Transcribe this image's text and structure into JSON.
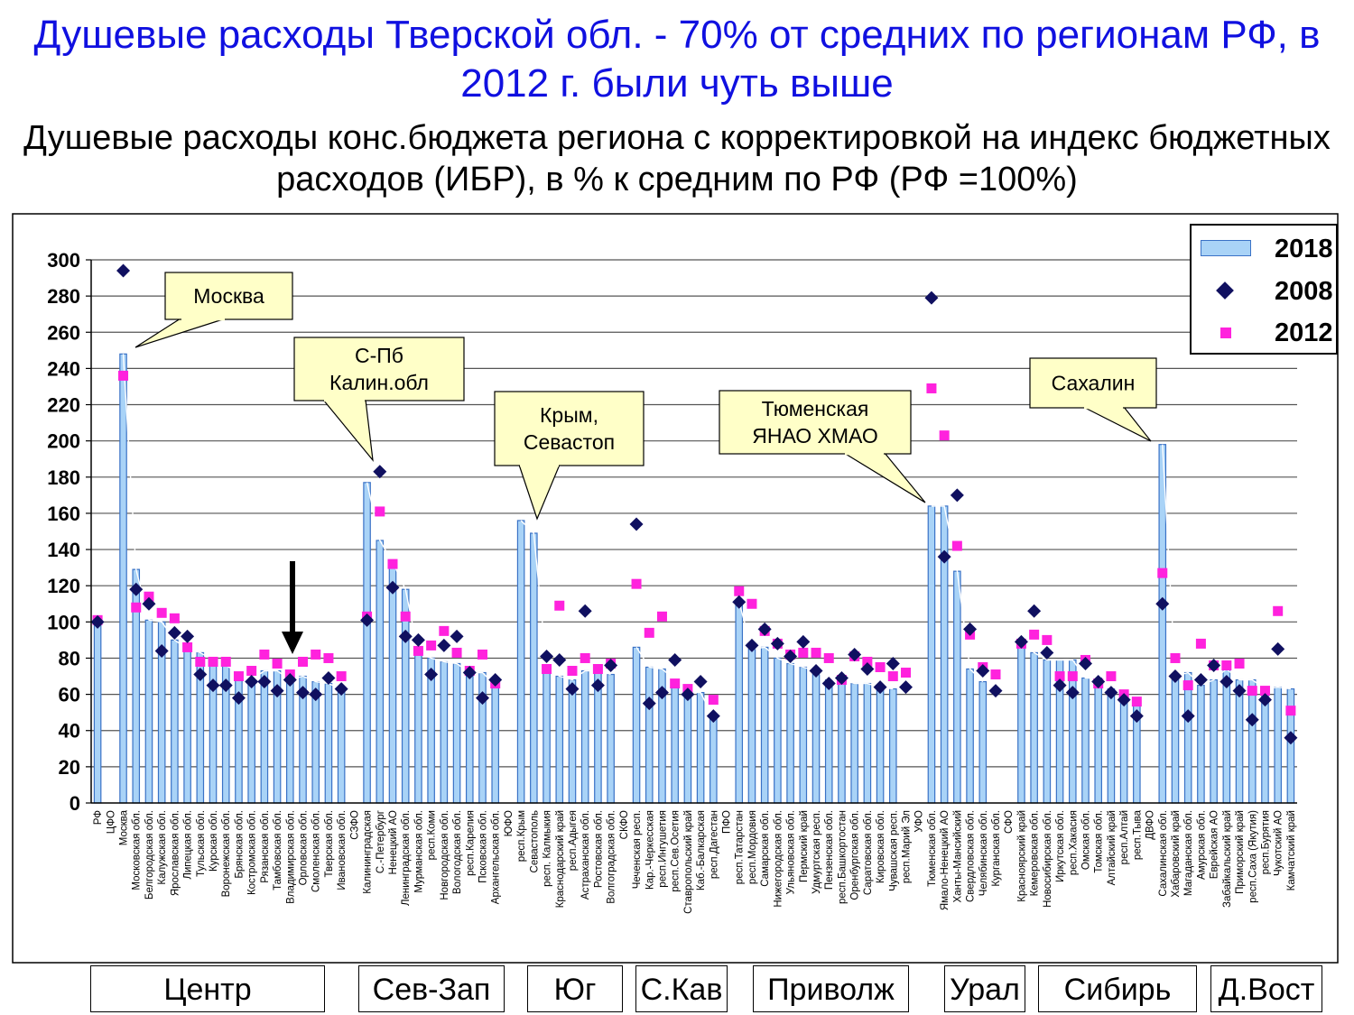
{
  "title": "Душевые расходы Тверской обл. - 70% от средних по регионам РФ, в 2012 г. были чуть выше",
  "subtitle": "Душевые расходы конс.бюджета региона с корректировкой на индекс бюджетных расходов (ИБР), в % к средним по РФ (РФ =100%)",
  "legend": {
    "s2018": "2018",
    "s2008": "2008",
    "s2012": "2012"
  },
  "colors": {
    "bar_fill": "#a9d3f7",
    "bar_stroke": "#3a72c6",
    "diamond": "#101060",
    "square": "#ff22dd",
    "callout": "#ffffc8"
  },
  "callouts": [
    {
      "name": "callout-moscow",
      "lines": [
        "Москва"
      ]
    },
    {
      "name": "callout-spb",
      "lines": [
        "С-Пб",
        "Калин.обл"
      ]
    },
    {
      "name": "callout-crimea",
      "lines": [
        "Крым,",
        "Севастоп"
      ]
    },
    {
      "name": "callout-tyumen",
      "lines": [
        "Тюменская",
        "ЯНАО ХМАО"
      ]
    },
    {
      "name": "callout-sakhalin",
      "lines": [
        "Сахалин"
      ]
    }
  ],
  "regions": [
    "Центр",
    "Сев-Зап",
    "Юг",
    "С.Кав",
    "Приволж",
    "Урал",
    "Сибирь",
    "Д.Вост"
  ],
  "chart_data": {
    "type": "bar",
    "ylim": [
      0,
      300
    ],
    "yticks": [
      0,
      20,
      40,
      60,
      80,
      100,
      120,
      140,
      160,
      180,
      200,
      220,
      240,
      260,
      280,
      300
    ],
    "grid": true,
    "legend_position": "top-right",
    "categories": [
      "РФ",
      "ЦФО",
      "Москва",
      "Московская обл.",
      "Белгородская обл.",
      "Калужская обл.",
      "Ярославская обл.",
      "Липецкая обл.",
      "Тульская обл.",
      "Курская обл.",
      "Воронежская обл.",
      "Брянская обл.",
      "Костромская обл.",
      "Рязанская обл.",
      "Тамбовская обл.",
      "Владимирская обл.",
      "Орловская обл.",
      "Смоленская обл.",
      "Тверская обл.",
      "Ивановская обл.",
      "СЗФО",
      "Калининградская",
      "С.-Петербург",
      "Ненецкий АО",
      "Ленинградская обл.",
      "Мурманская обл.",
      "респ.Коми",
      "Новгородская обл.",
      "Вологодская обл.",
      "респ.Карелия",
      "Псковская обл.",
      "Архангельская обл.",
      "ЮФО",
      "респ.Крым",
      "Севастополь",
      "респ. Калмыкия",
      "Краснодарский край",
      "респ.Адыгея",
      "Астраханская обл.",
      "Ростовская обл.",
      "Волгоградская обл.",
      "СКФО",
      "Чеченская респ.",
      "Кар.-Черкесская",
      "респ.Ингушетия",
      "респ.Сев.Осетия",
      "Ставропольский край",
      "Каб.-Балкарская",
      "респ.Дагестан",
      "ПФО",
      "респ.Татарстан",
      "респ.Мордовия",
      "Самарская обл.",
      "Нижегородская обл.",
      "Ульяновская обл.",
      "Пермский край",
      "Удмуртская респ.",
      "Пензенская обл.",
      "респ.Башкортостан",
      "Оренбургская обл.",
      "Саратовская обл.",
      "Кировская обл.",
      "Чувашская респ.",
      "респ.Марий Эл",
      "УФО",
      "Тюменская обл.",
      "Ямало-Ненецкий АО",
      "Ханты-Мансийский",
      "Свердловская обл.",
      "Челябинская обл.",
      "Курганская обл.",
      "СФО",
      "Красноярский край",
      "Кемеровская обл.",
      "Новосибирская обл.",
      "Иркутская обл.",
      "респ.Хакасия",
      "Омская обл.",
      "Томская обл.",
      "Алтайский край",
      "респ.Алтай",
      "респ.Тыва",
      "ДВФО",
      "Сахалинская обл.",
      "Хабаровский край",
      "Магаданская обл.",
      "Амурская обл.",
      "Еврейская АО",
      "Забайкальский край",
      "Приморский край",
      "респ.Саха (Якутия)",
      "респ.Бурятия",
      "Чукотский АО",
      "Камчатский край"
    ],
    "series": [
      {
        "name": "2018",
        "kind": "bar",
        "values": [
          100,
          null,
          248,
          129,
          101,
          100,
          90,
          85,
          83,
          79,
          76,
          72,
          68,
          73,
          73,
          68,
          70,
          67,
          66,
          63,
          null,
          177,
          145,
          133,
          118,
          83,
          80,
          78,
          77,
          72,
          72,
          65,
          null,
          156,
          149,
          75,
          70,
          68,
          73,
          73,
          71,
          null,
          86,
          75,
          74,
          68,
          61,
          61,
          47,
          null,
          111,
          85,
          86,
          80,
          77,
          75,
          73,
          68,
          68,
          66,
          66,
          64,
          63,
          null,
          null,
          164,
          164,
          128,
          74,
          67,
          null,
          null,
          89,
          83,
          79,
          79,
          79,
          69,
          69,
          63,
          60,
          54,
          null,
          198,
          70,
          72,
          65,
          68,
          74,
          68,
          68,
          63,
          64,
          63
        ]
      },
      {
        "name": "2008",
        "kind": "marker",
        "values": [
          100,
          null,
          294,
          118,
          110,
          84,
          94,
          92,
          71,
          65,
          65,
          58,
          67,
          67,
          62,
          68,
          61,
          60,
          69,
          63,
          null,
          101,
          183,
          119,
          92,
          90,
          71,
          87,
          92,
          72,
          58,
          68,
          null,
          null,
          null,
          81,
          79,
          63,
          106,
          65,
          76,
          null,
          154,
          55,
          61,
          79,
          60,
          67,
          48,
          null,
          111,
          87,
          96,
          88,
          81,
          89,
          73,
          66,
          69,
          82,
          74,
          64,
          77,
          64,
          null,
          279,
          136,
          170,
          96,
          73,
          62,
          null,
          89,
          106,
          83,
          65,
          61,
          77,
          67,
          61,
          57,
          48,
          null,
          110,
          70,
          48,
          68,
          76,
          67,
          62,
          46,
          57,
          85,
          36
        ]
      },
      {
        "name": "2012",
        "kind": "marker",
        "values": [
          101,
          null,
          236,
          108,
          114,
          105,
          102,
          86,
          78,
          78,
          78,
          70,
          73,
          82,
          77,
          71,
          78,
          82,
          80,
          70,
          null,
          103,
          161,
          132,
          103,
          84,
          87,
          95,
          83,
          73,
          82,
          66,
          null,
          null,
          null,
          74,
          109,
          73,
          80,
          74,
          77,
          null,
          121,
          94,
          103,
          66,
          63,
          null,
          57,
          null,
          117,
          110,
          95,
          88,
          82,
          83,
          83,
          80,
          68,
          81,
          78,
          75,
          70,
          72,
          null,
          229,
          203,
          142,
          93,
          75,
          71,
          null,
          88,
          93,
          90,
          70,
          70,
          79,
          66,
          70,
          60,
          56,
          null,
          127,
          80,
          65,
          88,
          76,
          76,
          77,
          62,
          62,
          106,
          51
        ]
      }
    ]
  }
}
